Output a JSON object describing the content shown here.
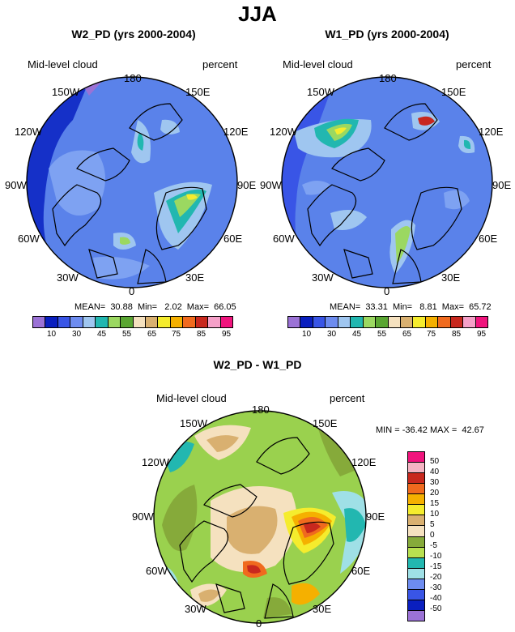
{
  "main_title": "JJA",
  "panels": [
    {
      "title": "W2_PD (yrs 2000-2004)",
      "left_label": "Mid-level cloud",
      "right_label": "percent",
      "stats": "MEAN=  30.88  Min=   2.02  Max=  66.05"
    },
    {
      "title": "W1_PD (yrs 2000-2004)",
      "left_label": "Mid-level cloud",
      "right_label": "percent",
      "stats": "MEAN=  33.31  Min=   8.81  Max=  65.72"
    }
  ],
  "diff": {
    "title": "W2_PD - W1_PD",
    "left_label": "Mid-level cloud",
    "right_label": "percent",
    "minmax": "MIN = -36.42 MAX =  42.67"
  },
  "longitude_labels": [
    "180",
    "150E",
    "120E",
    "90E",
    "60E",
    "30E",
    "0",
    "30W",
    "60W",
    "90W",
    "120W",
    "150W"
  ],
  "colorbar_abs": {
    "labels": [
      "10",
      "30",
      "45",
      "55",
      "65",
      "75",
      "85",
      "95"
    ],
    "colors": [
      "#9b72d6",
      "#0a1fbf",
      "#3955e6",
      "#6d8cf0",
      "#9fc6f0",
      "#22b7b0",
      "#9bd861",
      "#5aa632",
      "#f5e1bf",
      "#d9b070",
      "#f5ec2d",
      "#f5b000",
      "#f06a1e",
      "#c8281e",
      "#f5a0c8",
      "#f0147d"
    ]
  },
  "colorbar_diff": {
    "labels": [
      "50",
      "40",
      "30",
      "20",
      "15",
      "10",
      "5",
      "0",
      "-5",
      "-10",
      "-15",
      "-20",
      "-30",
      "-40",
      "-50"
    ],
    "colors": [
      "#f0147d",
      "#f5b4c3",
      "#c8281e",
      "#f06a1e",
      "#f5b000",
      "#f5ec2d",
      "#d9b070",
      "#f5e1bf",
      "#86aa3a",
      "#b8e050",
      "#22b7b0",
      "#9fe0e6",
      "#6d8cf0",
      "#3955e6",
      "#0a1fbf",
      "#9b72d6"
    ]
  },
  "colors": {
    "map_base_abs": "#5a82ea",
    "map_base_diff": "#9ad14e"
  }
}
